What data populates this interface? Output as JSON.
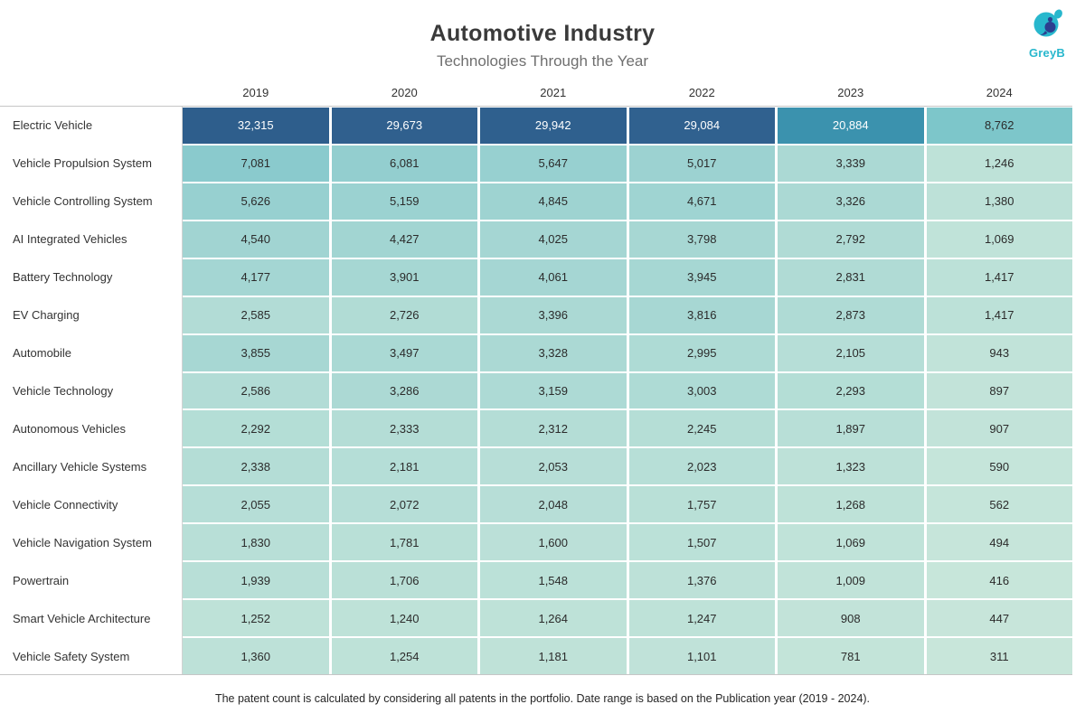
{
  "header": {
    "title": "Automotive Industry",
    "subtitle": "Technologies Through the Year",
    "logo_text": "GreyB",
    "logo_colors": {
      "teal": "#28b7cd",
      "navy": "#2c3e8f"
    }
  },
  "chart_data": {
    "type": "heatmap",
    "title": "Automotive Industry",
    "subtitle": "Technologies Through the Year",
    "columns": [
      "2019",
      "2020",
      "2021",
      "2022",
      "2023",
      "2024"
    ],
    "rows": [
      {
        "label": "Electric Vehicle",
        "values": [
          32315,
          29673,
          29942,
          29084,
          20884,
          8762
        ]
      },
      {
        "label": "Vehicle Propulsion System",
        "values": [
          7081,
          6081,
          5647,
          5017,
          3339,
          1246
        ]
      },
      {
        "label": "Vehicle Controlling System",
        "values": [
          5626,
          5159,
          4845,
          4671,
          3326,
          1380
        ]
      },
      {
        "label": "AI Integrated Vehicles",
        "values": [
          4540,
          4427,
          4025,
          3798,
          2792,
          1069
        ]
      },
      {
        "label": "Battery Technology",
        "values": [
          4177,
          3901,
          4061,
          3945,
          2831,
          1417
        ]
      },
      {
        "label": "EV Charging",
        "values": [
          2585,
          2726,
          3396,
          3816,
          2873,
          1417
        ]
      },
      {
        "label": "Automobile",
        "values": [
          3855,
          3497,
          3328,
          2995,
          2105,
          943
        ]
      },
      {
        "label": "Vehicle Technology",
        "values": [
          2586,
          3286,
          3159,
          3003,
          2293,
          897
        ]
      },
      {
        "label": "Autonomous Vehicles",
        "values": [
          2292,
          2333,
          2312,
          2245,
          1897,
          907
        ]
      },
      {
        "label": "Ancillary Vehicle Systems",
        "values": [
          2338,
          2181,
          2053,
          2023,
          1323,
          590
        ]
      },
      {
        "label": "Vehicle Connectivity",
        "values": [
          2055,
          2072,
          2048,
          1757,
          1268,
          562
        ]
      },
      {
        "label": "Vehicle Navigation System",
        "values": [
          1830,
          1781,
          1600,
          1507,
          1069,
          494
        ]
      },
      {
        "label": "Powertrain",
        "values": [
          1939,
          1706,
          1548,
          1376,
          1009,
          416
        ]
      },
      {
        "label": "Smart Vehicle Architecture",
        "values": [
          1252,
          1240,
          1264,
          1247,
          908,
          447
        ]
      },
      {
        "label": "Vehicle Safety System",
        "values": [
          1360,
          1254,
          1181,
          1101,
          781,
          311
        ]
      }
    ],
    "value_range": [
      311,
      32315
    ],
    "color_scale": {
      "stops": [
        {
          "t": 0.0,
          "color": "#c8e6da"
        },
        {
          "t": 0.035,
          "color": "#bce1d8"
        },
        {
          "t": 0.212,
          "color": "#8acacd"
        },
        {
          "t": 0.264,
          "color": "#7dc6ca"
        },
        {
          "t": 0.643,
          "color": "#3b92ae"
        },
        {
          "t": 0.899,
          "color": "#30618f"
        },
        {
          "t": 1.0,
          "color": "#2e5e8c"
        }
      ],
      "text_dark": "#2b2b2b",
      "text_light": "#ffffff",
      "light_text_threshold": 0.5
    },
    "number_format": "thousands-comma",
    "legend": "none",
    "grid": "white-gaps"
  },
  "footer": {
    "note": "The patent count is calculated by considering all patents in the portfolio. Date range is based on the Publication year (2019 - 2024)."
  }
}
